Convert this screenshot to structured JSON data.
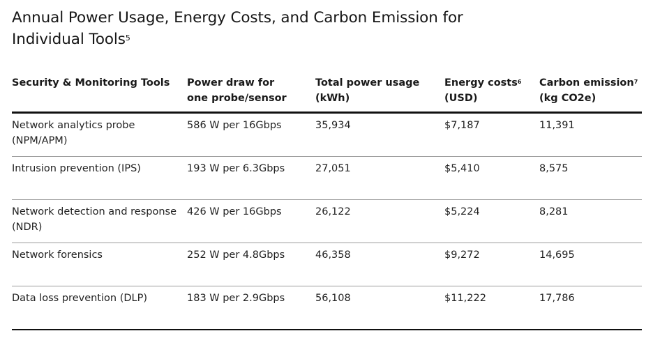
{
  "title": {
    "text": "Annual Power Usage, Energy Costs, and Carbon Emission for Individual Tools",
    "footnote": "5"
  },
  "table": {
    "headers": [
      {
        "text": "Security & Monitoring Tools",
        "note": ""
      },
      {
        "text": "Power draw for one probe/sensor",
        "note": ""
      },
      {
        "text": "Total power usage (kWh)",
        "note": ""
      },
      {
        "text": "Energy costs",
        "note": "6",
        "unit": "(USD)"
      },
      {
        "text": "Carbon emission",
        "note": "7",
        "unit": "(kg CO2e)"
      }
    ],
    "rows": [
      [
        "Network analytics probe (NPM/APM)",
        "586 W per 16Gbps",
        "35,934",
        "$7,187",
        "11,391"
      ],
      [
        "Intrusion prevention (IPS)",
        "193 W per 6.3Gbps",
        "27,051",
        "$5,410",
        "8,575"
      ],
      [
        "Network detection and response (NDR)",
        "426 W per 16Gbps",
        "26,122",
        "$5,224",
        "8,281"
      ],
      [
        "Network forensics",
        "252 W per 4.8Gbps",
        "46,358",
        "$9,272",
        "14,695"
      ],
      [
        "Data loss prevention (DLP)",
        "183 W per 2.9Gbps",
        "56,108",
        "$11,222",
        "17,786"
      ]
    ]
  }
}
